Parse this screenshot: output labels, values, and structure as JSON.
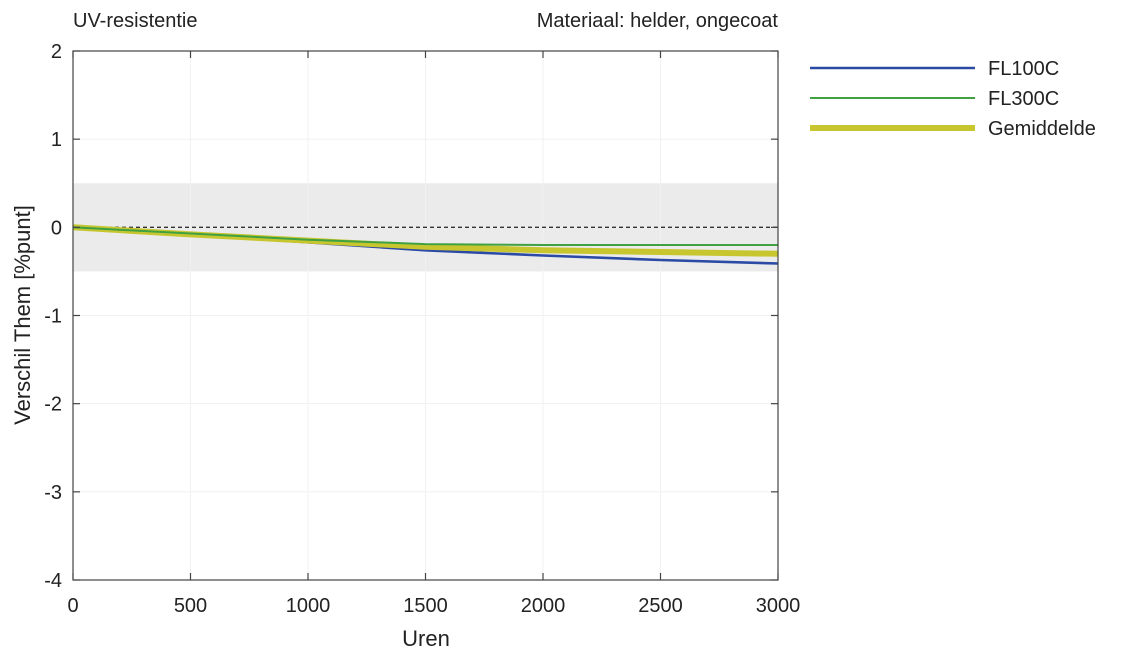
{
  "chart_data": {
    "type": "line",
    "title_left": "UV-resistentie",
    "title_right": "Materiaal: helder, ongecoat",
    "xlabel": "Uren",
    "ylabel": "Verschil Them [%punt]",
    "xlim": [
      0,
      3000
    ],
    "ylim": [
      -4,
      2
    ],
    "x_ticks": [
      0,
      500,
      1000,
      1500,
      2000,
      2500,
      3000
    ],
    "y_ticks": [
      2,
      1,
      0,
      -1,
      -2,
      -3,
      -4
    ],
    "grid": true,
    "tolerance_band": [
      -0.5,
      0.5
    ],
    "reference_line": 0,
    "legend_position": "outside-right-top",
    "series": [
      {
        "name": "FL100C",
        "color": "#2b4aa5",
        "x": [
          0,
          500,
          1000,
          1500,
          2000,
          2500,
          3000
        ],
        "y": [
          0,
          -0.08,
          -0.17,
          -0.26,
          -0.32,
          -0.37,
          -0.41
        ]
      },
      {
        "name": "FL300C",
        "color": "#3fa142",
        "x": [
          0,
          500,
          1000,
          1500,
          2000,
          2500,
          3000
        ],
        "y": [
          0,
          -0.07,
          -0.14,
          -0.19,
          -0.2,
          -0.2,
          -0.2
        ]
      },
      {
        "name": "Gemiddelde",
        "color": "#c8c62e",
        "x": [
          0,
          500,
          1000,
          1500,
          2000,
          2500,
          3000
        ],
        "y": [
          0,
          -0.08,
          -0.15,
          -0.22,
          -0.26,
          -0.28,
          -0.3
        ]
      }
    ]
  }
}
